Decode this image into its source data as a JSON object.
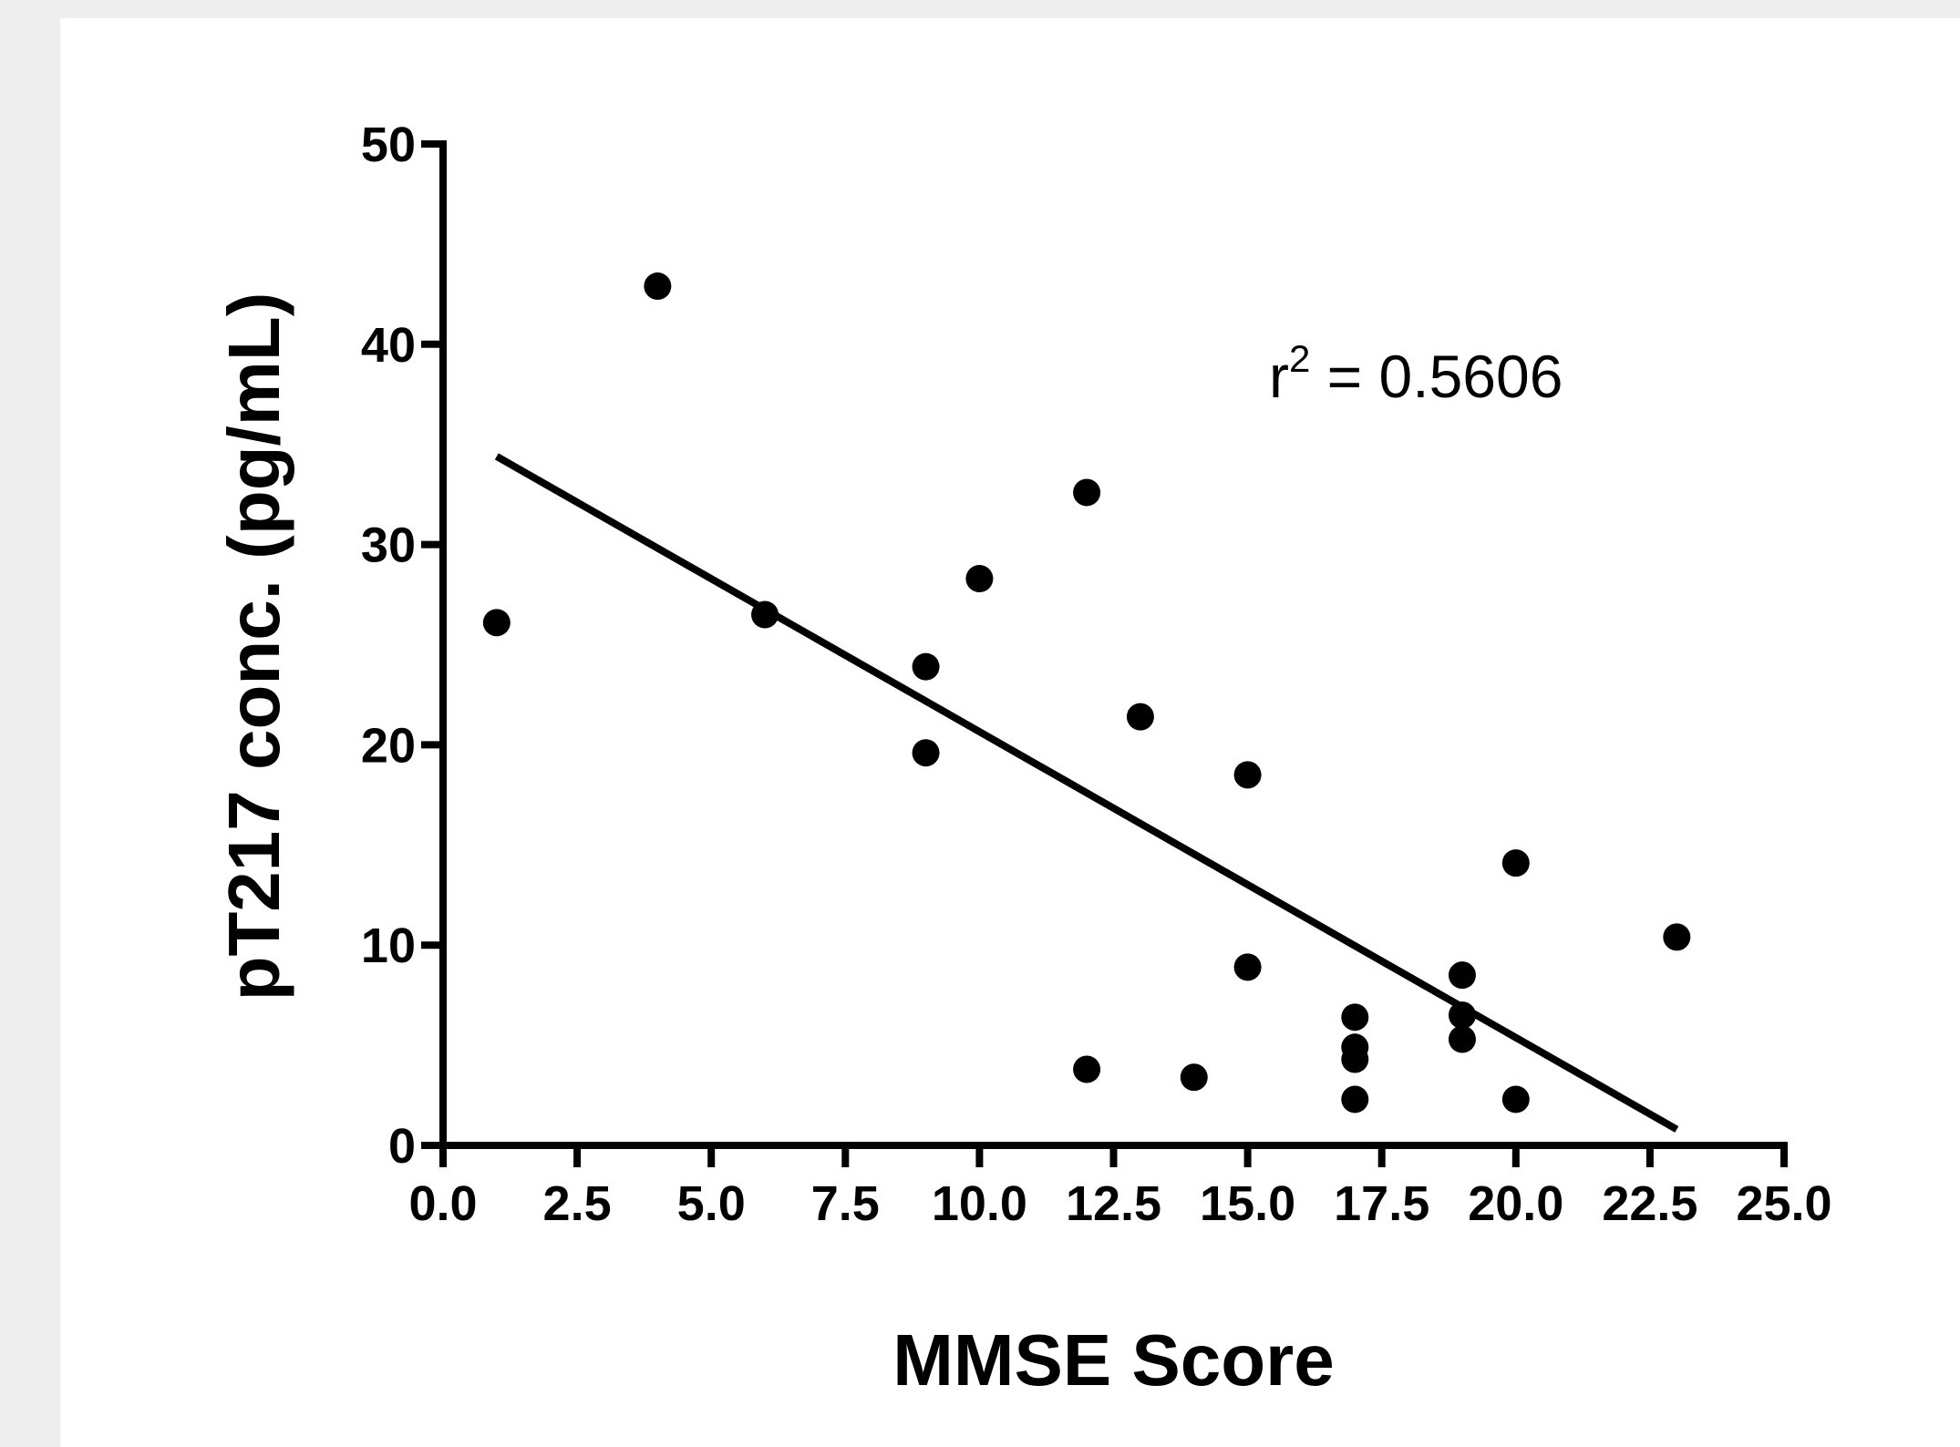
{
  "chart_data": {
    "type": "scatter",
    "title": "",
    "xlabel": "MMSE Score",
    "ylabel": "pT217 conc. (pg/mL)",
    "xlim": [
      0,
      25
    ],
    "ylim": [
      0,
      50
    ],
    "x_ticks": [
      "0.0",
      "2.5",
      "5.0",
      "7.5",
      "10.0",
      "12.5",
      "15.0",
      "17.5",
      "20.0",
      "22.5",
      "25.0"
    ],
    "y_ticks": [
      "0",
      "10",
      "20",
      "30",
      "40",
      "50"
    ],
    "grid": false,
    "series": [
      {
        "points": [
          {
            "x": 1,
            "y": 26.1
          },
          {
            "x": 4,
            "y": 42.9
          },
          {
            "x": 6,
            "y": 26.5
          },
          {
            "x": 9,
            "y": 23.9
          },
          {
            "x": 9,
            "y": 19.6
          },
          {
            "x": 10,
            "y": 28.3
          },
          {
            "x": 12,
            "y": 32.6
          },
          {
            "x": 12,
            "y": 3.8
          },
          {
            "x": 13,
            "y": 21.4
          },
          {
            "x": 14,
            "y": 3.4
          },
          {
            "x": 15,
            "y": 18.5
          },
          {
            "x": 15,
            "y": 8.9
          },
          {
            "x": 17,
            "y": 6.4
          },
          {
            "x": 17,
            "y": 4.9
          },
          {
            "x": 17,
            "y": 4.3
          },
          {
            "x": 17,
            "y": 2.3
          },
          {
            "x": 19,
            "y": 8.5
          },
          {
            "x": 19,
            "y": 6.5
          },
          {
            "x": 19,
            "y": 5.3
          },
          {
            "x": 20,
            "y": 14.1
          },
          {
            "x": 20,
            "y": 2.3
          },
          {
            "x": 23,
            "y": 10.4
          }
        ],
        "color": "#000000"
      }
    ],
    "regression_line": {
      "x": [
        1,
        23
      ],
      "y": [
        34.4,
        0.8
      ],
      "color": "#000000"
    },
    "annotation": {
      "prefix": "r",
      "superscript": "2",
      "suffix": " = 0.5606"
    }
  }
}
